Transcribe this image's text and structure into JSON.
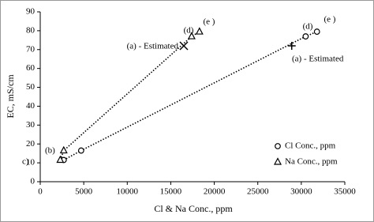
{
  "chart_data": {
    "type": "scatter",
    "x_label": "Cl & Na Conc., ppm",
    "y_label": "EC, mS/cm",
    "xlim": [
      0,
      35000
    ],
    "xticks": [
      0,
      5000,
      10000,
      15000,
      20000,
      25000,
      30000,
      35000
    ],
    "ylim": [
      0,
      90
    ],
    "yticks": [
      0,
      10,
      20,
      30,
      40,
      50,
      60,
      70,
      80,
      90
    ],
    "line_style": "dotted",
    "color": "#000000",
    "series": [
      {
        "name": "Cl Conc., ppm",
        "marker": "circle",
        "x": [
          2700,
          4700,
          30500,
          31800
        ],
        "values": [
          11.5,
          16.5,
          77,
          79.5
        ]
      },
      {
        "name": "Na Conc., ppm",
        "marker": "triangle",
        "x": [
          2300,
          2700,
          17400,
          18300
        ],
        "values": [
          11.5,
          16.5,
          77,
          79.5
        ]
      }
    ],
    "estimated": [
      {
        "marker": "plus",
        "x": 28900,
        "y": 72
      },
      {
        "marker": "cross",
        "x": 16500,
        "y": 72
      }
    ],
    "annotations": [
      "(b)",
      "c)",
      "(d)",
      "(e )",
      "(d)",
      "(e )",
      "(a) - Estimated",
      "(a) - Estimated"
    ]
  }
}
